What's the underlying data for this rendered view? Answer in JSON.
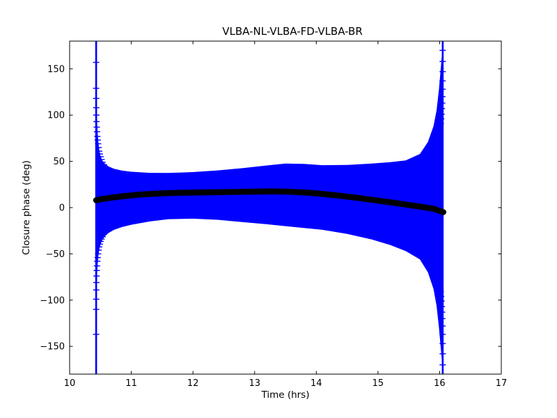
{
  "chart_data": {
    "type": "scatter",
    "title": "VLBA-NL-VLBA-FD-VLBA-BR",
    "xlabel": "Time (hrs)",
    "ylabel": "Closure phase (deg)",
    "xlim": [
      10,
      17
    ],
    "ylim": [
      -180,
      180
    ],
    "xticks": [
      10,
      11,
      12,
      13,
      14,
      15,
      16,
      17
    ],
    "xtick_labels": [
      "10",
      "11",
      "12",
      "13",
      "14",
      "15",
      "16",
      "17"
    ],
    "yticks": [
      -150,
      -100,
      -50,
      0,
      50,
      100,
      150
    ],
    "ytick_labels": [
      "−150",
      "−100",
      "−50",
      "0",
      "50",
      "100",
      "150"
    ],
    "grid": false,
    "legend": null,
    "colors": {
      "errorbars": "#0000ff",
      "points": "#000000",
      "axes": "#000000",
      "background": "#ffffff"
    },
    "series": [
      {
        "name": "closure-phase-errorbars",
        "type": "errorbar-envelope",
        "color": "#0000ff",
        "time_range_hrs": [
          10.43,
          16.05
        ],
        "top": [
          [
            10.43,
            180
          ],
          [
            10.432,
            150
          ],
          [
            10.436,
            122
          ],
          [
            10.441,
            103
          ],
          [
            10.448,
            89
          ],
          [
            10.457,
            78
          ],
          [
            10.468,
            69
          ],
          [
            10.482,
            62
          ],
          [
            10.5,
            56
          ],
          [
            10.53,
            51
          ],
          [
            10.57,
            47.5
          ],
          [
            10.63,
            44.5
          ],
          [
            10.72,
            42
          ],
          [
            10.85,
            40
          ],
          [
            11.0,
            38.8
          ],
          [
            11.3,
            37.6
          ],
          [
            11.6,
            37.4
          ],
          [
            12.0,
            38.4
          ],
          [
            12.4,
            40.2
          ],
          [
            12.8,
            42.6
          ],
          [
            13.2,
            45.6
          ],
          [
            13.5,
            47.6
          ],
          [
            13.8,
            47.2
          ],
          [
            14.1,
            45.9
          ],
          [
            14.5,
            46.1
          ],
          [
            14.9,
            47.6
          ],
          [
            15.2,
            49.2
          ],
          [
            15.45,
            51
          ],
          [
            15.68,
            58
          ],
          [
            15.81,
            71
          ],
          [
            15.9,
            88
          ],
          [
            15.95,
            105
          ],
          [
            15.99,
            128
          ],
          [
            16.02,
            152
          ],
          [
            16.04,
            168
          ],
          [
            16.05,
            180
          ]
        ],
        "bottom": [
          [
            10.43,
            -180
          ],
          [
            10.432,
            -128
          ],
          [
            10.436,
            -100
          ],
          [
            10.441,
            -82
          ],
          [
            10.448,
            -69
          ],
          [
            10.457,
            -59
          ],
          [
            10.468,
            -51
          ],
          [
            10.482,
            -45
          ],
          [
            10.5,
            -40
          ],
          [
            10.53,
            -35
          ],
          [
            10.57,
            -31
          ],
          [
            10.63,
            -27.5
          ],
          [
            10.72,
            -24
          ],
          [
            10.85,
            -21
          ],
          [
            11.0,
            -18.5
          ],
          [
            11.3,
            -15
          ],
          [
            11.6,
            -12.5
          ],
          [
            12.0,
            -12
          ],
          [
            12.4,
            -13.2
          ],
          [
            12.8,
            -15.6
          ],
          [
            13.2,
            -18
          ],
          [
            13.5,
            -20
          ],
          [
            13.8,
            -22
          ],
          [
            14.1,
            -24
          ],
          [
            14.5,
            -28.5
          ],
          [
            14.9,
            -34.5
          ],
          [
            15.2,
            -40.5
          ],
          [
            15.45,
            -47
          ],
          [
            15.68,
            -56
          ],
          [
            15.81,
            -70
          ],
          [
            15.9,
            -88
          ],
          [
            15.95,
            -106
          ],
          [
            15.99,
            -130
          ],
          [
            16.02,
            -153
          ],
          [
            16.04,
            -168
          ],
          [
            16.05,
            -180
          ]
        ],
        "spikes": [
          {
            "t": 10.43,
            "full_range_deg": [
              -180,
              180
            ],
            "top_caps": [
              [
                10.43,
                157
              ],
              [
                10.43,
                129
              ],
              [
                10.431,
                118
              ],
              [
                10.432,
                108
              ],
              [
                10.434,
                100
              ],
              [
                10.437,
                93
              ],
              [
                10.44,
                87
              ],
              [
                10.444,
                82
              ],
              [
                10.449,
                77
              ],
              [
                10.455,
                73
              ],
              [
                10.462,
                69
              ],
              [
                10.47,
                65
              ],
              [
                10.479,
                61
              ],
              [
                10.49,
                58
              ],
              [
                10.503,
                55
              ],
              [
                10.518,
                52
              ],
              [
                10.535,
                49
              ],
              [
                10.555,
                46.5
              ]
            ],
            "bottom_caps": [
              [
                10.43,
                -137
              ],
              [
                10.43,
                -110
              ],
              [
                10.431,
                -99
              ],
              [
                10.432,
                -89
              ],
              [
                10.434,
                -81
              ],
              [
                10.437,
                -74
              ],
              [
                10.44,
                -68
              ],
              [
                10.444,
                -63
              ],
              [
                10.449,
                -58
              ],
              [
                10.455,
                -54
              ],
              [
                10.462,
                -50
              ],
              [
                10.47,
                -46
              ],
              [
                10.479,
                -42.5
              ],
              [
                10.49,
                -39.5
              ],
              [
                10.503,
                -36.5
              ],
              [
                10.518,
                -34
              ],
              [
                10.535,
                -31.5
              ],
              [
                10.555,
                -29
              ]
            ]
          },
          {
            "t": 16.05,
            "full_range_deg": [
              -180,
              180
            ],
            "top_caps": [
              [
                16.05,
                170
              ],
              [
                16.05,
                158
              ],
              [
                16.049,
                147
              ],
              [
                16.048,
                137
              ],
              [
                16.046,
                128
              ],
              [
                16.044,
                120
              ],
              [
                16.041,
                113
              ],
              [
                16.037,
                107
              ],
              [
                16.032,
                101
              ],
              [
                16.026,
                96
              ],
              [
                16.019,
                91
              ],
              [
                16.011,
                86
              ],
              [
                16.002,
                81
              ],
              [
                15.99,
                76
              ],
              [
                15.975,
                71
              ],
              [
                15.958,
                66
              ],
              [
                15.938,
                61
              ],
              [
                15.915,
                56
              ]
            ],
            "bottom_caps": [
              [
                16.05,
                -170
              ],
              [
                16.05,
                -158
              ],
              [
                16.049,
                -147
              ],
              [
                16.048,
                -137
              ],
              [
                16.046,
                -128
              ],
              [
                16.044,
                -120
              ],
              [
                16.041,
                -113
              ],
              [
                16.037,
                -107
              ],
              [
                16.032,
                -101
              ],
              [
                16.026,
                -96
              ],
              [
                16.019,
                -91
              ],
              [
                16.011,
                -86
              ],
              [
                16.002,
                -81
              ],
              [
                15.99,
                -76
              ],
              [
                15.975,
                -71
              ],
              [
                15.958,
                -66
              ],
              [
                15.938,
                -61
              ],
              [
                15.915,
                -56
              ]
            ]
          }
        ]
      },
      {
        "name": "closure-phase-points",
        "type": "scatter-dense",
        "color": "#000000",
        "points": [
          [
            10.43,
            8.0
          ],
          [
            10.55,
            9.6
          ],
          [
            10.7,
            11.0
          ],
          [
            10.9,
            12.6
          ],
          [
            11.1,
            13.9
          ],
          [
            11.35,
            15.0
          ],
          [
            11.6,
            15.7
          ],
          [
            11.9,
            16.2
          ],
          [
            12.2,
            16.5
          ],
          [
            12.5,
            16.8
          ],
          [
            12.8,
            17.1
          ],
          [
            13.1,
            17.4
          ],
          [
            13.35,
            17.5
          ],
          [
            13.6,
            17.1
          ],
          [
            13.85,
            16.2
          ],
          [
            14.1,
            14.8
          ],
          [
            14.4,
            12.7
          ],
          [
            14.7,
            10.3
          ],
          [
            15.0,
            7.6
          ],
          [
            15.3,
            4.8
          ],
          [
            15.6,
            1.9
          ],
          [
            15.9,
            -1.2
          ],
          [
            16.06,
            -4.9
          ]
        ]
      }
    ]
  }
}
